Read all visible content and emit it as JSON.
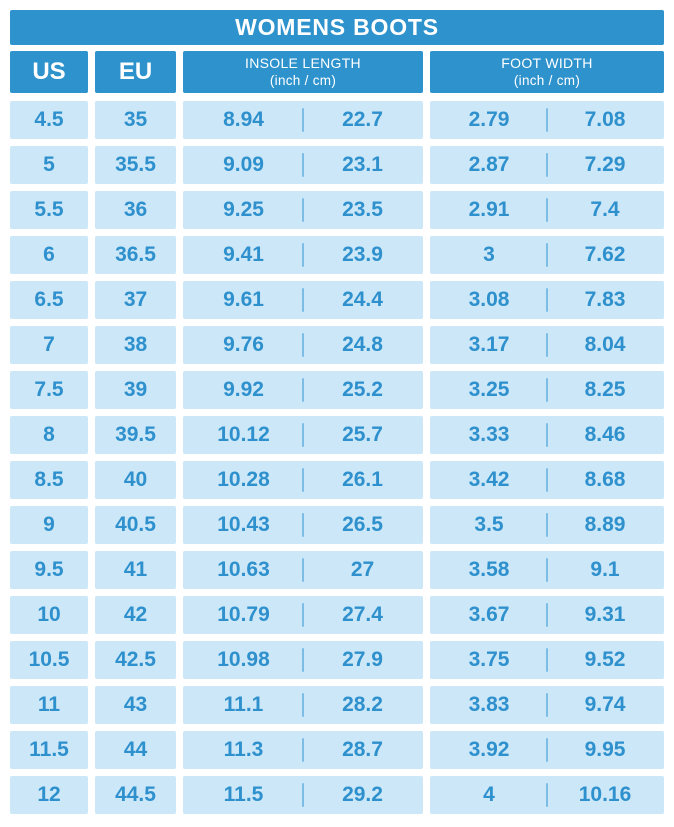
{
  "title": "WOMENS BOOTS",
  "colors": {
    "header_blue": "#2e92cc",
    "cell_light_blue": "#cbe7f8",
    "value_text_blue": "#2e90cc",
    "divider_blue": "#7cbde6",
    "header_text": "#ffffff",
    "background": "#ffffff"
  },
  "columns": {
    "us_label": "US",
    "eu_label": "EU",
    "insole_label": "INSOLE LENGTH",
    "insole_sub": "(inch / cm)",
    "width_label": "FOOT WIDTH",
    "width_sub": "(inch / cm)"
  },
  "chart_data": {
    "type": "table",
    "title": "WOMENS BOOTS",
    "columns": [
      "US",
      "EU",
      "Insole Length (inch)",
      "Insole Length (cm)",
      "Foot Width (inch)",
      "Foot Width (cm)"
    ],
    "rows": [
      {
        "us": "4.5",
        "eu": "35",
        "insole_inch": "8.94",
        "insole_cm": "22.7",
        "width_inch": "2.79",
        "width_cm": "7.08"
      },
      {
        "us": "5",
        "eu": "35.5",
        "insole_inch": "9.09",
        "insole_cm": "23.1",
        "width_inch": "2.87",
        "width_cm": "7.29"
      },
      {
        "us": "5.5",
        "eu": "36",
        "insole_inch": "9.25",
        "insole_cm": "23.5",
        "width_inch": "2.91",
        "width_cm": "7.4"
      },
      {
        "us": "6",
        "eu": "36.5",
        "insole_inch": "9.41",
        "insole_cm": "23.9",
        "width_inch": "3",
        "width_cm": "7.62"
      },
      {
        "us": "6.5",
        "eu": "37",
        "insole_inch": "9.61",
        "insole_cm": "24.4",
        "width_inch": "3.08",
        "width_cm": "7.83"
      },
      {
        "us": "7",
        "eu": "38",
        "insole_inch": "9.76",
        "insole_cm": "24.8",
        "width_inch": "3.17",
        "width_cm": "8.04"
      },
      {
        "us": "7.5",
        "eu": "39",
        "insole_inch": "9.92",
        "insole_cm": "25.2",
        "width_inch": "3.25",
        "width_cm": "8.25"
      },
      {
        "us": "8",
        "eu": "39.5",
        "insole_inch": "10.12",
        "insole_cm": "25.7",
        "width_inch": "3.33",
        "width_cm": "8.46"
      },
      {
        "us": "8.5",
        "eu": "40",
        "insole_inch": "10.28",
        "insole_cm": "26.1",
        "width_inch": "3.42",
        "width_cm": "8.68"
      },
      {
        "us": "9",
        "eu": "40.5",
        "insole_inch": "10.43",
        "insole_cm": "26.5",
        "width_inch": "3.5",
        "width_cm": "8.89"
      },
      {
        "us": "9.5",
        "eu": "41",
        "insole_inch": "10.63",
        "insole_cm": "27",
        "width_inch": "3.58",
        "width_cm": "9.1"
      },
      {
        "us": "10",
        "eu": "42",
        "insole_inch": "10.79",
        "insole_cm": "27.4",
        "width_inch": "3.67",
        "width_cm": "9.31"
      },
      {
        "us": "10.5",
        "eu": "42.5",
        "insole_inch": "10.98",
        "insole_cm": "27.9",
        "width_inch": "3.75",
        "width_cm": "9.52"
      },
      {
        "us": "11",
        "eu": "43",
        "insole_inch": "11.1",
        "insole_cm": "28.2",
        "width_inch": "3.83",
        "width_cm": "9.74"
      },
      {
        "us": "11.5",
        "eu": "44",
        "insole_inch": "11.3",
        "insole_cm": "28.7",
        "width_inch": "3.92",
        "width_cm": "9.95"
      },
      {
        "us": "12",
        "eu": "44.5",
        "insole_inch": "11.5",
        "insole_cm": "29.2",
        "width_inch": "4",
        "width_cm": "10.16"
      }
    ]
  }
}
